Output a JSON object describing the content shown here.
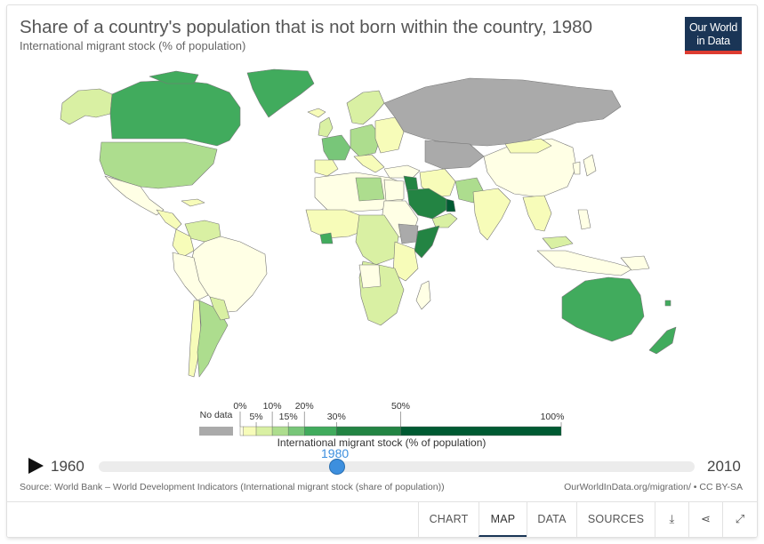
{
  "header": {
    "title": "Share of a country's population that is not born within the country, 1980",
    "subtitle": "International migrant stock (% of population)"
  },
  "logo": {
    "line1": "Our World",
    "line2": "in Data",
    "background": "#1a3556",
    "accent": "#dd3c31"
  },
  "legend": {
    "no_data_label": "No data",
    "no_data_color": "#aaaaaa",
    "bins": [
      {
        "from": 0,
        "to": 1,
        "color": "#ffffe5"
      },
      {
        "from": 1,
        "to": 5,
        "color": "#f7fcb9"
      },
      {
        "from": 5,
        "to": 10,
        "color": "#d9f0a3"
      },
      {
        "from": 10,
        "to": 15,
        "color": "#addd8e"
      },
      {
        "from": 15,
        "to": 20,
        "color": "#78c679"
      },
      {
        "from": 20,
        "to": 30,
        "color": "#41ab5d"
      },
      {
        "from": 30,
        "to": 50,
        "color": "#238443"
      },
      {
        "from": 50,
        "to": 100,
        "color": "#005a32"
      }
    ],
    "tick_labels": [
      "0%",
      "5%",
      "10%",
      "15%",
      "20%",
      "30%",
      "50%",
      "100%"
    ],
    "title": "International migrant stock (% of population)"
  },
  "timeline": {
    "start_year": "1960",
    "end_year": "2010",
    "current_year": "1980"
  },
  "footer": {
    "source": "Source: World Bank – World Development Indicators (International migrant stock (share of population))",
    "license": "OurWorldInData.org/migration/ • CC BY-SA"
  },
  "tabs": [
    {
      "label": "CHART",
      "icon": ""
    },
    {
      "label": "MAP",
      "icon": ""
    },
    {
      "label": "DATA",
      "icon": ""
    },
    {
      "label": "SOURCES",
      "icon": ""
    },
    {
      "label": "",
      "icon": "download-icon",
      "glyph": "⤓"
    },
    {
      "label": "",
      "icon": "share-icon",
      "glyph": "⋖"
    },
    {
      "label": "",
      "icon": "expand-icon",
      "glyph": "⤢"
    }
  ],
  "active_tab": "MAP"
}
